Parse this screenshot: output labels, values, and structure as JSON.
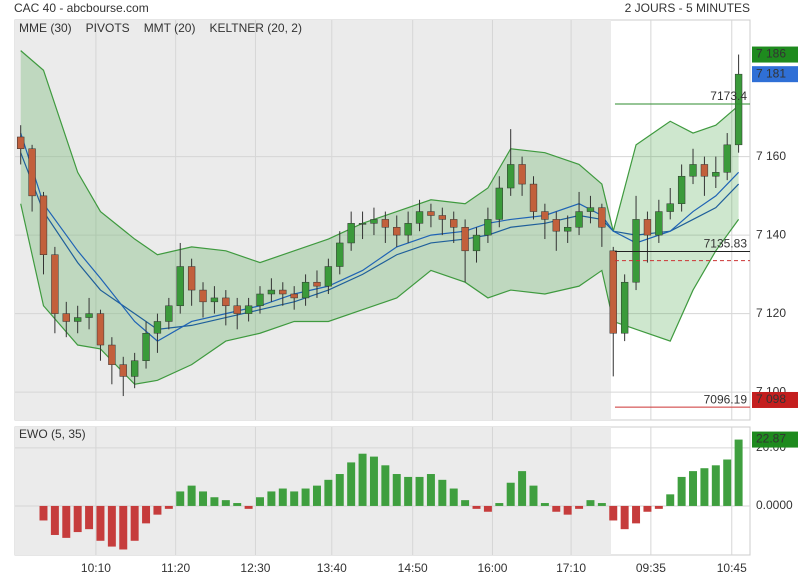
{
  "header": {
    "title": "CAC 40 - abcbourse.com",
    "timeframe": "2 JOURS - 5 MINUTES"
  },
  "chart_data": [
    {
      "type": "candlestick",
      "legend": [
        {
          "name": "MME (30)",
          "color": "#1f63b5"
        },
        {
          "name": "PIVOTS",
          "color": "#555555"
        },
        {
          "name": "MMT (20)",
          "color": "#1f63b5"
        },
        {
          "name": "KELTNER (20, 2)",
          "color": "#3f9a3f"
        }
      ],
      "xlim": [
        -0.5,
        64
      ],
      "session_start": 51.8,
      "xticks": [
        {
          "value": 6.6,
          "label": "10:10"
        },
        {
          "value": 13.6,
          "label": "11:20"
        },
        {
          "value": 20.6,
          "label": "12:30"
        },
        {
          "value": 27.3,
          "label": "13:40"
        },
        {
          "value": 34.4,
          "label": "14:50"
        },
        {
          "value": 41.4,
          "label": "16:00"
        },
        {
          "value": 48.3,
          "label": "17:10"
        },
        {
          "value": 55.3,
          "label": "09:35"
        },
        {
          "value": 62.4,
          "label": "10:45"
        }
      ],
      "ylim": [
        7092.9,
        7194.8
      ],
      "yticks": [
        {
          "value": 7100,
          "label": "7 100"
        },
        {
          "value": 7120,
          "label": "7 120"
        },
        {
          "value": 7140,
          "label": "7 140"
        },
        {
          "value": 7160,
          "label": "7 160"
        }
      ],
      "up_color": "#3a9a3a",
      "down_color": "#c2603c",
      "ohlc": [
        [
          7165,
          7168,
          7158,
          7162
        ],
        [
          7162,
          7163,
          7146,
          7150
        ],
        [
          7150,
          7151,
          7130,
          7135
        ],
        [
          7135,
          7137,
          7115,
          7120
        ],
        [
          7120,
          7123,
          7114,
          7118
        ],
        [
          7118,
          7122,
          7115,
          7119
        ],
        [
          7119,
          7124,
          7116,
          7120
        ],
        [
          7120,
          7121,
          7108,
          7112
        ],
        [
          7112,
          7114,
          7102,
          7107
        ],
        [
          7107,
          7109,
          7099,
          7104
        ],
        [
          7104,
          7110,
          7101,
          7108
        ],
        [
          7108,
          7118,
          7106,
          7115
        ],
        [
          7115,
          7120,
          7110,
          7118
        ],
        [
          7118,
          7124,
          7116,
          7122
        ],
        [
          7122,
          7138,
          7120,
          7132
        ],
        [
          7132,
          7134,
          7122,
          7126
        ],
        [
          7126,
          7128,
          7119,
          7123
        ],
        [
          7123,
          7127,
          7120,
          7124
        ],
        [
          7124,
          7126,
          7117,
          7122
        ],
        [
          7122,
          7124,
          7116,
          7120
        ],
        [
          7120,
          7124,
          7118,
          7122
        ],
        [
          7122,
          7127,
          7120,
          7125
        ],
        [
          7125,
          7129,
          7123,
          7126
        ],
        [
          7126,
          7128,
          7122,
          7125
        ],
        [
          7125,
          7127,
          7121,
          7124
        ],
        [
          7124,
          7130,
          7122,
          7128
        ],
        [
          7128,
          7131,
          7124,
          7127
        ],
        [
          7127,
          7134,
          7125,
          7132
        ],
        [
          7132,
          7141,
          7130,
          7138
        ],
        [
          7138,
          7146,
          7136,
          7143
        ],
        [
          7143,
          7146,
          7139,
          7143
        ],
        [
          7143,
          7147,
          7140,
          7144
        ],
        [
          7144,
          7146,
          7138,
          7142
        ],
        [
          7142,
          7145,
          7137,
          7140
        ],
        [
          7140,
          7146,
          7138,
          7143
        ],
        [
          7143,
          7149,
          7141,
          7146
        ],
        [
          7146,
          7148,
          7142,
          7145
        ],
        [
          7145,
          7147,
          7140,
          7144
        ],
        [
          7144,
          7146,
          7138,
          7142
        ],
        [
          7142,
          7144,
          7128,
          7136
        ],
        [
          7136,
          7142,
          7133,
          7140
        ],
        [
          7140,
          7147,
          7138,
          7144
        ],
        [
          7144,
          7155,
          7142,
          7152
        ],
        [
          7152,
          7167,
          7150,
          7158
        ],
        [
          7158,
          7160,
          7150,
          7153
        ],
        [
          7153,
          7155,
          7144,
          7146
        ],
        [
          7146,
          7148,
          7139,
          7144
        ],
        [
          7144,
          7146,
          7136,
          7141
        ],
        [
          7141,
          7145,
          7138,
          7142
        ],
        [
          7142,
          7151,
          7140,
          7146
        ],
        [
          7146,
          7150,
          7143,
          7147
        ],
        [
          7147,
          7148,
          7137,
          7142
        ],
        [
          7136,
          7137,
          7104,
          7115
        ],
        [
          7115,
          7130,
          7113,
          7128
        ],
        [
          7128,
          7150,
          7126,
          7144
        ],
        [
          7144,
          7146,
          7133,
          7140
        ],
        [
          7140,
          7149,
          7138,
          7146
        ],
        [
          7146,
          7152,
          7144,
          7148
        ],
        [
          7148,
          7158,
          7146,
          7155
        ],
        [
          7155,
          7162,
          7153,
          7158
        ],
        [
          7158,
          7160,
          7150,
          7155
        ],
        [
          7155,
          7160,
          7152,
          7156
        ],
        [
          7156,
          7166,
          7154,
          7163
        ],
        [
          7163,
          7186,
          7161,
          7181
        ]
      ],
      "lines_x": [
        0,
        2,
        5,
        7,
        10,
        12,
        15,
        18,
        21,
        24,
        27,
        30,
        33,
        36,
        39,
        41,
        43,
        46,
        49,
        51,
        52,
        54,
        57,
        59,
        61,
        63
      ],
      "keltner_upper": [
        7187,
        7182,
        7156,
        7146,
        7139,
        7135,
        7137,
        7136,
        7133,
        7136,
        7139,
        7143,
        7146,
        7149,
        7148,
        7152,
        7162,
        7161,
        7158,
        7153,
        7141,
        7163,
        7169,
        7166,
        7168,
        7173
      ],
      "keltner_lower": [
        7148,
        7122,
        7112,
        7111,
        7102,
        7103,
        7107,
        7113,
        7115,
        7118,
        7118,
        7121,
        7124,
        7131,
        7128,
        7124,
        7126,
        7125,
        7127,
        7131,
        7118,
        7116,
        7113,
        7126,
        7136,
        7144
      ],
      "mme": [
        7166,
        7148,
        7136,
        7129,
        7118,
        7113,
        7118,
        7120,
        7122,
        7125,
        7127,
        7131,
        7137,
        7140,
        7141,
        7143,
        7144,
        7145,
        7148,
        7145,
        7141,
        7138,
        7141,
        7146,
        7150,
        7156
      ],
      "mmt": [
        7161,
        7146,
        7133,
        7126,
        7120,
        7116,
        7117,
        7119,
        7121,
        7123,
        7126,
        7130,
        7135,
        7138,
        7139,
        7140,
        7142,
        7143,
        7145,
        7144,
        7141,
        7140,
        7141,
        7144,
        7147,
        7153
      ],
      "levels": [
        {
          "value": 7173.4,
          "color": "#2e8b2e",
          "labeled": true
        },
        {
          "value": 7135.83,
          "color": "#222222",
          "labeled": true
        },
        {
          "value": 7133.5,
          "color": "#cc3333",
          "labeled": false
        },
        {
          "value": 7096.19,
          "color": "#cc3333",
          "labeled": true
        }
      ],
      "price_badges": [
        {
          "value": 7186,
          "label": "7 186",
          "color": "#1e8a1e"
        },
        {
          "value": 7181,
          "label": "7 181",
          "color": "#2f6fd6"
        },
        {
          "value": 7098,
          "label": "7 098",
          "color": "#c41e1e"
        }
      ]
    },
    {
      "type": "bar",
      "title": "EWO (5, 35)",
      "ylim": [
        -16.9,
        27.2
      ],
      "yticks": [
        {
          "value": 0,
          "label": "0.0000"
        },
        {
          "value": 20,
          "label": "20.00"
        }
      ],
      "pos_color": "#3f9f3f",
      "neg_color": "#c63c3c",
      "badge_color": "#1e8a1e",
      "values": [
        null,
        null,
        -5,
        -10,
        -11,
        -9,
        -8,
        -12,
        -14,
        -15,
        -12,
        -6,
        -3,
        -1,
        5,
        7,
        5,
        3,
        2,
        1,
        -1,
        3,
        5,
        6,
        5,
        6,
        7,
        9,
        11,
        15,
        18,
        17,
        14,
        11,
        10,
        10,
        11,
        9,
        6,
        2,
        -1,
        -2,
        1,
        8,
        12,
        7,
        1,
        -2,
        -3,
        -1,
        2,
        1,
        -5,
        -8,
        -6,
        -2,
        -1,
        4,
        10,
        12,
        13,
        14,
        16,
        22.87
      ]
    }
  ]
}
